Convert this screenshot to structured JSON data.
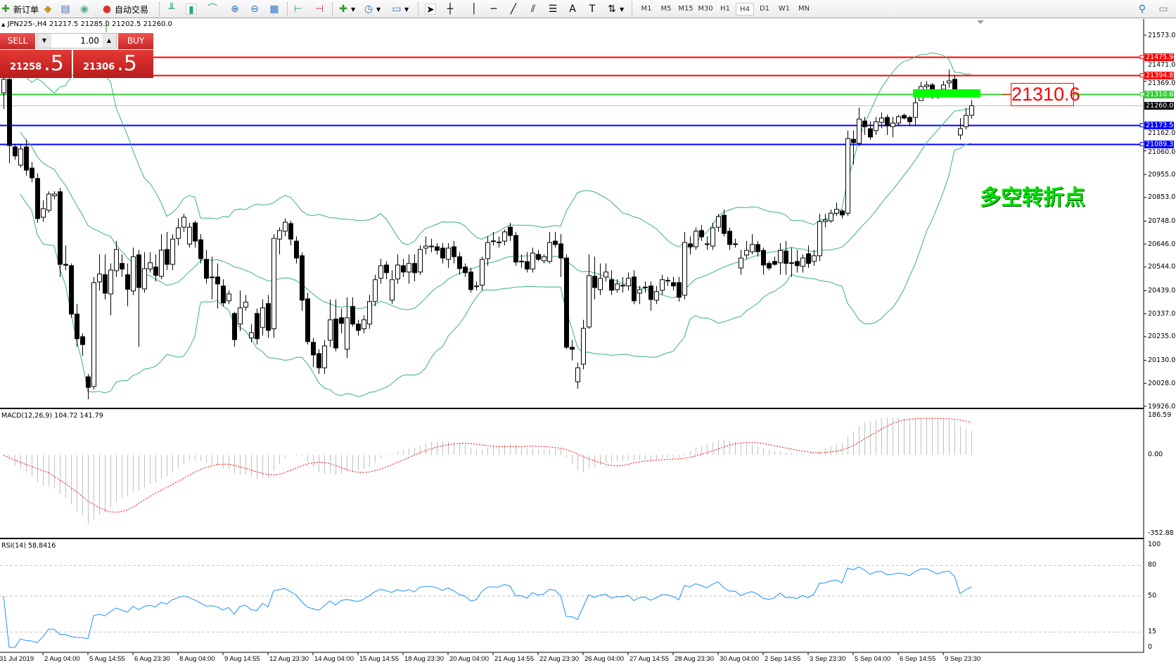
{
  "toolbar": {
    "new_order": "新订单",
    "auto_trading": "自动交易",
    "timeframes": [
      "M1",
      "M5",
      "M15",
      "M30",
      "H1",
      "H4",
      "D1",
      "W1",
      "MN"
    ],
    "active_timeframe": "H4",
    "icons": [
      "new-order-icon",
      "history-book-icon",
      "market-watch-icon",
      "signals-icon",
      "auto-trading-icon",
      "bar-chart-icon",
      "candlestick-icon",
      "line-chart-icon",
      "zoom-in-icon",
      "zoom-out-icon",
      "tile-windows-icon",
      "auto-scroll-icon",
      "chart-shift-icon",
      "indicators-icon",
      "periods-icon",
      "templates-icon",
      "cursor-icon",
      "crosshair-icon",
      "vertical-line-icon",
      "horizontal-line-icon",
      "trendline-icon",
      "equidistant-channel-icon",
      "fibonacci-icon",
      "text-icon",
      "text-label-icon",
      "arrows-icon",
      "search-icon",
      "chat-icon"
    ]
  },
  "chart": {
    "info": "JPN225-,H4  21217.5 21285.0 21202.5 21260.0",
    "oneclick": {
      "sell_label": "SELL",
      "buy_label": "BUY",
      "lot": "1.00",
      "sell_price_main": "21258",
      "sell_price_frac": ".5",
      "buy_price_main": "21306",
      "buy_price_frac": ".5"
    },
    "annotation": "多空转折点",
    "level_label": "21310.6",
    "zone": {
      "price_top": 21333,
      "price_bottom": 21296,
      "color": "#00ff00"
    }
  },
  "colors": {
    "bollinger": "#3cb371",
    "resistance": "#ff0000",
    "pivot": "#33cc33",
    "support": "#0000ff",
    "bid": "#c0c0c0",
    "macd_hist": "#c0c0c0",
    "macd_signal": "#ff0000",
    "rsi": "#1e90ff"
  },
  "chart_data": {
    "type": "candlestick",
    "symbol": "JPN225-",
    "timeframe": "H4",
    "price_axis": {
      "min": 19926.0,
      "max": 21573.0,
      "ticks": [
        "21573.0",
        "21471.0",
        "21369.0",
        "21162.0",
        "21060.0",
        "20955.0",
        "20853.0",
        "20748.0",
        "20646.0",
        "20544.0",
        "20439.0",
        "20337.0",
        "20235.0",
        "20130.0",
        "20028.0",
        "19926.0"
      ]
    },
    "time_labels": [
      "31 Jul 2019",
      "2 Aug 04:00",
      "5 Aug 14:55",
      "6 Aug 23:30",
      "8 Aug 04:00",
      "9 Aug 14:55",
      "12 Aug 23:30",
      "14 Aug 04:00",
      "15 Aug 14:55",
      "18 Aug 23:30",
      "20 Aug 04:00",
      "21 Aug 14:55",
      "22 Aug 23:30",
      "26 Aug 04:00",
      "27 Aug 14:55",
      "28 Aug 23:30",
      "30 Aug 04:00",
      "2 Sep 14:55",
      "3 Sep 23:30",
      "5 Sep 04:00",
      "6 Sep 14:55",
      "9 Sep 23:30"
    ],
    "levels": [
      {
        "price": 21475.9,
        "label": "21475.9",
        "kind": "resistance"
      },
      {
        "price": 21394.8,
        "label": "21394.8",
        "kind": "resistance"
      },
      {
        "price": 21310.6,
        "label": "21310.6",
        "kind": "pivot"
      },
      {
        "price": 21260.0,
        "label": "21260.0",
        "kind": "bid"
      },
      {
        "price": 21173.5,
        "label": "21173.5",
        "kind": "support"
      },
      {
        "price": 21089.3,
        "label": "21089.3",
        "kind": "support"
      }
    ],
    "bollinger": {
      "period": 20,
      "deviation": 2
    },
    "ohlc": [
      [
        21317,
        21400,
        21245,
        21377
      ],
      [
        21377,
        21400,
        21005,
        21083
      ],
      [
        21077,
        21090,
        21020,
        21037
      ],
      [
        20996,
        21085,
        20985,
        21068
      ],
      [
        21077,
        21110,
        20950,
        20974
      ],
      [
        20983,
        21010,
        20920,
        20940
      ],
      [
        20937,
        20960,
        20740,
        20759
      ],
      [
        20765,
        20840,
        20745,
        20803
      ],
      [
        20796,
        20880,
        20785,
        20868
      ],
      [
        20860,
        20880,
        20845,
        20868
      ],
      [
        20878,
        20895,
        20500,
        20556
      ],
      [
        20556,
        20640,
        20530,
        20552
      ],
      [
        20550,
        20560,
        20320,
        20335
      ],
      [
        20335,
        20380,
        20190,
        20226
      ],
      [
        20235,
        20250,
        20150,
        20200
      ],
      [
        20057,
        20070,
        19957,
        20010
      ],
      [
        20014,
        20500,
        20000,
        20475
      ],
      [
        20478,
        20600,
        20440,
        20513
      ],
      [
        20510,
        20600,
        20400,
        20428
      ],
      [
        20425,
        20560,
        20330,
        20531
      ],
      [
        20528,
        20660,
        20500,
        20622
      ],
      [
        20560,
        20600,
        20500,
        20535
      ],
      [
        20510,
        20560,
        20370,
        20445
      ],
      [
        20438,
        20630,
        20420,
        20590
      ],
      [
        20598,
        20620,
        20190,
        20453
      ],
      [
        20447,
        20610,
        20430,
        20537
      ],
      [
        20535,
        20610,
        20520,
        20563
      ],
      [
        20544,
        20600,
        20480,
        20507
      ],
      [
        20503,
        20690,
        20490,
        20619
      ],
      [
        20622,
        20700,
        20530,
        20556
      ],
      [
        20556,
        20690,
        20530,
        20668
      ],
      [
        20671,
        20760,
        20640,
        20718
      ],
      [
        20721,
        20780,
        20700,
        20765
      ],
      [
        20646,
        20740,
        20630,
        20721
      ],
      [
        20740,
        20750,
        20630,
        20659
      ],
      [
        20665,
        20690,
        20560,
        20581
      ],
      [
        20578,
        20620,
        20470,
        20494
      ],
      [
        20500,
        20590,
        20400,
        20500
      ],
      [
        20500,
        20560,
        20360,
        20469
      ],
      [
        20460,
        20490,
        20370,
        20385
      ],
      [
        20394,
        20440,
        20380,
        20425
      ],
      [
        20338,
        20345,
        20190,
        20222
      ],
      [
        20291,
        20440,
        20260,
        20363
      ],
      [
        20366,
        20420,
        20350,
        20388
      ],
      [
        20229,
        20290,
        20210,
        20253
      ],
      [
        20338,
        20360,
        20200,
        20226
      ],
      [
        20276,
        20400,
        20240,
        20363
      ],
      [
        20382,
        20420,
        20230,
        20263
      ],
      [
        20270,
        20690,
        20230,
        20671
      ],
      [
        20668,
        20720,
        20600,
        20706
      ],
      [
        20703,
        20760,
        20680,
        20743
      ],
      [
        20737,
        20750,
        20640,
        20668
      ],
      [
        20659,
        20680,
        20560,
        20584
      ],
      [
        20594,
        20610,
        20350,
        20397
      ],
      [
        20403,
        20430,
        20200,
        20213
      ],
      [
        20210,
        20230,
        20100,
        20154
      ],
      [
        20160,
        20180,
        20070,
        20097
      ],
      [
        20097,
        20220,
        20070,
        20194
      ],
      [
        20219,
        20400,
        20190,
        20310
      ],
      [
        20313,
        20400,
        20170,
        20185
      ],
      [
        20319,
        20360,
        20250,
        20294
      ],
      [
        20179,
        20410,
        20140,
        20319
      ],
      [
        20369,
        20410,
        20280,
        20291
      ],
      [
        20291,
        20310,
        20240,
        20263
      ],
      [
        20270,
        20330,
        20250,
        20310
      ],
      [
        20291,
        20420,
        20270,
        20391
      ],
      [
        20391,
        20510,
        20370,
        20488
      ],
      [
        20494,
        20580,
        20470,
        20550
      ],
      [
        20553,
        20570,
        20490,
        20519
      ],
      [
        20397,
        20530,
        20380,
        20488
      ],
      [
        20491,
        20600,
        20470,
        20553
      ],
      [
        20550,
        20580,
        20500,
        20522
      ],
      [
        20522,
        20600,
        20470,
        20560
      ],
      [
        20560,
        20600,
        20480,
        20519
      ],
      [
        20522,
        20640,
        20510,
        20622
      ],
      [
        20628,
        20680,
        20600,
        20637
      ],
      [
        20637,
        20670,
        20610,
        20637
      ],
      [
        20634,
        20650,
        20600,
        20618
      ],
      [
        20628,
        20650,
        20560,
        20584
      ],
      [
        20578,
        20650,
        20540,
        20628
      ],
      [
        20634,
        20660,
        20560,
        20590
      ],
      [
        20590,
        20610,
        20510,
        20537
      ],
      [
        20544,
        20560,
        20500,
        20519
      ],
      [
        20522,
        20540,
        20430,
        20444
      ],
      [
        20460,
        20480,
        20440,
        20460
      ],
      [
        20463,
        20590,
        20440,
        20578
      ],
      [
        20581,
        20680,
        20550,
        20653
      ],
      [
        20660,
        20700,
        20640,
        20660
      ],
      [
        20655,
        20680,
        20630,
        20655
      ],
      [
        20659,
        20710,
        20640,
        20700
      ],
      [
        20721,
        20740,
        20660,
        20684
      ],
      [
        20684,
        20700,
        20550,
        20566
      ],
      [
        20570,
        20600,
        20540,
        20568
      ],
      [
        20568,
        20610,
        20520,
        20535
      ],
      [
        20535,
        20630,
        20520,
        20606
      ],
      [
        20600,
        20620,
        20570,
        20578
      ],
      [
        20572,
        20600,
        20560,
        20590
      ],
      [
        20569,
        20700,
        20560,
        20653
      ],
      [
        20659,
        20700,
        20630,
        20644
      ],
      [
        20647,
        20690,
        20500,
        20584
      ],
      [
        20584,
        20600,
        20180,
        20188
      ],
      [
        20188,
        20220,
        20130,
        20179
      ],
      [
        20035,
        20120,
        20004,
        20097
      ],
      [
        20113,
        20310,
        20090,
        20272
      ],
      [
        20278,
        20600,
        20270,
        20506
      ],
      [
        20503,
        20590,
        20400,
        20453
      ],
      [
        20444,
        20560,
        20420,
        20494
      ],
      [
        20500,
        20560,
        20480,
        20522
      ],
      [
        20488,
        20530,
        20420,
        20441
      ],
      [
        20444,
        20490,
        20430,
        20469
      ],
      [
        20463,
        20500,
        20430,
        20463
      ],
      [
        20460,
        20520,
        20440,
        20494
      ],
      [
        20500,
        20530,
        20380,
        20394
      ],
      [
        20428,
        20460,
        20380,
        20444
      ],
      [
        20455,
        20480,
        20430,
        20455
      ],
      [
        20460,
        20480,
        20350,
        20400
      ],
      [
        20397,
        20460,
        20380,
        20435
      ],
      [
        20441,
        20510,
        20420,
        20488
      ],
      [
        20485,
        20500,
        20460,
        20485
      ],
      [
        20475,
        20500,
        20440,
        20460
      ],
      [
        20475,
        20500,
        20390,
        20410
      ],
      [
        20419,
        20700,
        20400,
        20653
      ],
      [
        20647,
        20680,
        20600,
        20634
      ],
      [
        20634,
        20720,
        20620,
        20703
      ],
      [
        20706,
        20730,
        20660,
        20678
      ],
      [
        20647,
        20680,
        20620,
        20647
      ],
      [
        20637,
        20740,
        20620,
        20718
      ],
      [
        20721,
        20780,
        20700,
        20768
      ],
      [
        20774,
        20800,
        20680,
        20693
      ],
      [
        20703,
        20720,
        20620,
        20644
      ],
      [
        20647,
        20670,
        20630,
        20645
      ],
      [
        20540,
        20620,
        20510,
        20584
      ],
      [
        20597,
        20660,
        20580,
        20618
      ],
      [
        20612,
        20690,
        20600,
        20644
      ],
      [
        20644,
        20660,
        20590,
        20612
      ],
      [
        20618,
        20630,
        20510,
        20553
      ],
      [
        20560,
        20570,
        20530,
        20540
      ],
      [
        20569,
        20590,
        20550,
        20556
      ],
      [
        20563,
        20650,
        20510,
        20618
      ],
      [
        20615,
        20660,
        20510,
        20560
      ],
      [
        20560,
        20630,
        20500,
        20563
      ],
      [
        20569,
        20620,
        20520,
        20550
      ],
      [
        20547,
        20600,
        20520,
        20584
      ],
      [
        20603,
        20640,
        20540,
        20560
      ],
      [
        20569,
        20620,
        20550,
        20594
      ],
      [
        20594,
        20780,
        20570,
        20746
      ],
      [
        20746,
        20780,
        20720,
        20753
      ],
      [
        20749,
        20800,
        20740,
        20783
      ],
      [
        20783,
        20830,
        20770,
        20800
      ],
      [
        20793,
        20800,
        20760,
        20775
      ],
      [
        20783,
        21150,
        20770,
        21114
      ],
      [
        21111,
        21150,
        21000,
        21096
      ],
      [
        21093,
        21252,
        21080,
        21201
      ],
      [
        21192,
        21210,
        21130,
        21167
      ],
      [
        21158,
        21190,
        21110,
        21121
      ],
      [
        21149,
        21210,
        21130,
        21189
      ],
      [
        21186,
        21230,
        21160,
        21205
      ],
      [
        21208,
        21220,
        21130,
        21170
      ],
      [
        21167,
        21210,
        21120,
        21183
      ],
      [
        21183,
        21220,
        21170,
        21211
      ],
      [
        21217,
        21225,
        21200,
        21205
      ],
      [
        21208,
        21215,
        21170,
        21189
      ],
      [
        21208,
        21300,
        21170,
        21273
      ],
      [
        21283,
        21365,
        21290,
        21345
      ],
      [
        21345,
        21370,
        21320,
        21352
      ],
      [
        21352,
        21360,
        21290,
        21333
      ],
      [
        21310,
        21330,
        21290,
        21310
      ],
      [
        21333,
        21370,
        21320,
        21352
      ],
      [
        21361,
        21420,
        21340,
        21370
      ],
      [
        21377,
        21395,
        21320,
        21333
      ],
      [
        21130,
        21205,
        21110,
        21158
      ],
      [
        21167,
        21250,
        21155,
        21217
      ],
      [
        21217.5,
        21285.0,
        21202.5,
        21260.0
      ]
    ],
    "macd": {
      "label": "MACD(12,26,9) 104.72 141.79",
      "fast": 12,
      "slow": 26,
      "signal": 9,
      "axis_max": "186.59",
      "axis_zero": "0.00",
      "axis_min": "-352.88",
      "max": 186.59,
      "min": -352.88
    },
    "rsi": {
      "label": "RSI(14) 58.8416",
      "period": 14,
      "levels": [
        "100",
        "80",
        "50",
        "15",
        "0"
      ],
      "level_values": [
        100,
        80,
        50,
        15,
        0
      ]
    }
  }
}
